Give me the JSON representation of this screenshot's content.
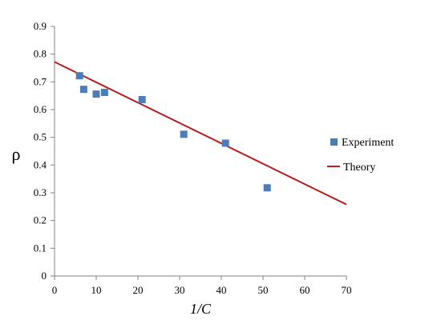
{
  "chart_data": {
    "type": "scatter",
    "xlabel": "1/C",
    "ylabel": "ρ",
    "xlim": [
      0,
      70
    ],
    "ylim": [
      0,
      0.9
    ],
    "x_ticks": [
      0,
      10,
      20,
      30,
      40,
      50,
      60,
      70
    ],
    "y_ticks": [
      0,
      0.1,
      0.2,
      0.3,
      0.4,
      0.5,
      0.6,
      0.7,
      0.8,
      0.9
    ],
    "grid": false,
    "legend_position": "right",
    "series": [
      {
        "name": "Experiment",
        "kind": "scatter",
        "marker": "square",
        "color": "#4a7ebb",
        "points": [
          {
            "x": 6,
            "y": 0.722
          },
          {
            "x": 7,
            "y": 0.673
          },
          {
            "x": 10,
            "y": 0.656
          },
          {
            "x": 12,
            "y": 0.662
          },
          {
            "x": 21,
            "y": 0.636
          },
          {
            "x": 31,
            "y": 0.511
          },
          {
            "x": 41,
            "y": 0.479
          },
          {
            "x": 51,
            "y": 0.318
          }
        ]
      },
      {
        "name": "Theory",
        "kind": "line",
        "color": "#b21f1f",
        "points": [
          {
            "x": 0,
            "y": 0.772
          },
          {
            "x": 70,
            "y": 0.258
          }
        ]
      }
    ]
  }
}
